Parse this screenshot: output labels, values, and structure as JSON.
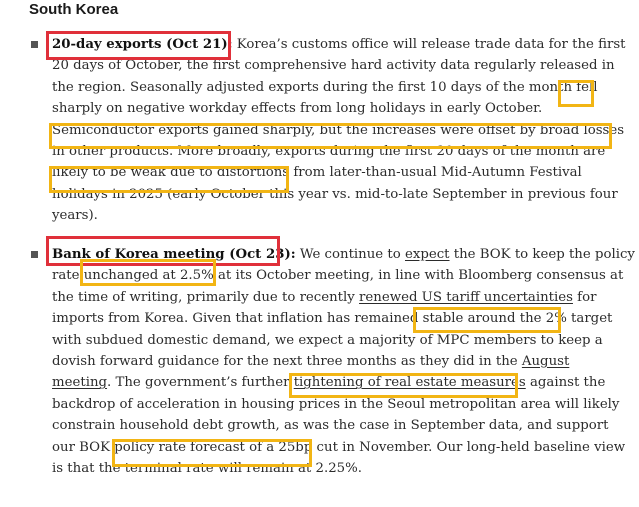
{
  "heading": "South Korea",
  "colors": {
    "red_box": "#e0303a",
    "yellow_box": "#f2b514",
    "text": "#2b2b2b"
  },
  "items": [
    {
      "title": "20-day exports (Oct 21):",
      "lines": [
        " Korea’s customs office will release trade data for the first",
        "20 days of October, the first comprehensive hard activity data regularly released in",
        "the region. Seasonally adjusted exports during the first 10 days of the month fell",
        "sharply on negative workday effects from long holidays in early October.",
        "Semiconductor exports gained sharply, but the increases were offset by broad losses",
        "in other products. More broadly, exports during the first 20 days of the month are",
        "likely to be weak due to distortions from later-than-usual Mid-Autumn Festival",
        "holidays in 2025 (early October this year vs. mid-to-late September in previous four",
        "years)."
      ]
    },
    {
      "title": "Bank of Korea meeting (Oct 23):",
      "l1a": " We continue to ",
      "link_expect": "expect",
      "l1b": " the BOK to keep the policy",
      "l2": "rate unchanged at 2.5% at its October meeting, in line with Bloomberg consensus at",
      "l3a": "the time of writing, primarily due to recently ",
      "link_tariff": "renewed US tariff uncertainties",
      "l3b": " for",
      "l4": "imports from Korea. Given that inflation has remained stable around the 2% target",
      "l5": "with subdued domestic demand, we expect a majority of MPC members to keep a",
      "l6a": "dovish forward guidance for the next three months as they did in the ",
      "link_august": "August",
      "link_meeting": "meeting",
      "l7a": ". The government’s further ",
      "link_realestate": "tightening of real estate measures",
      "l7b": " against the",
      "l8": "backdrop of acceleration in housing prices in the Seoul metropolitan area will likely",
      "l9": "constrain household debt growth, as was the case in September data, and support",
      "l10": "our BOK policy rate forecast of a 25bp cut in November. Our long-held baseline view",
      "l11": "is that the terminal rate will remain at 2.25%."
    }
  ]
}
